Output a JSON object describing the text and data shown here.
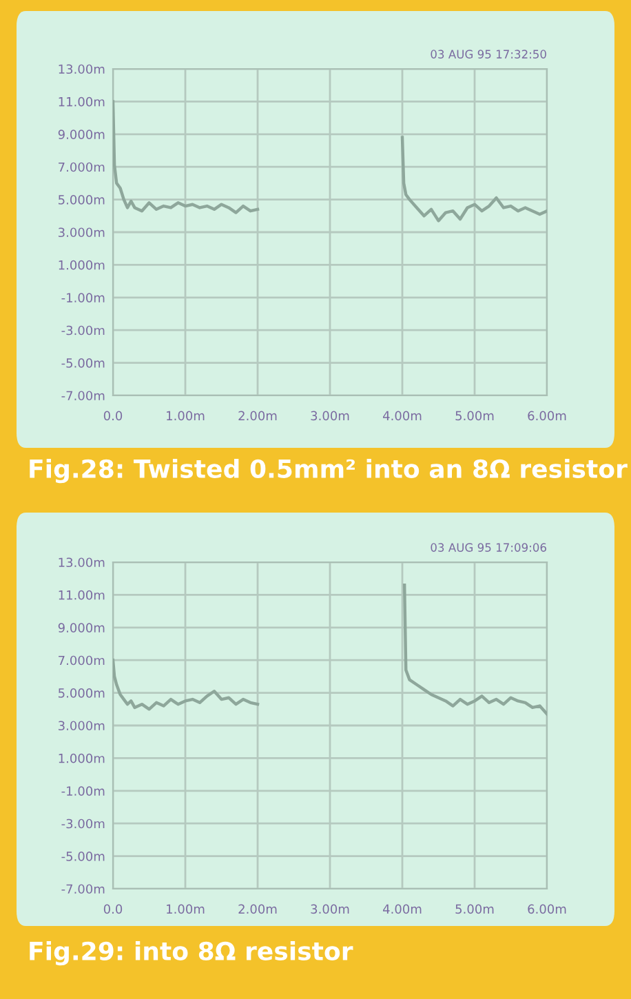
{
  "chart_data": [
    {
      "type": "line",
      "title": "Fig.28: Twisted 0.5mm² into an 8Ω resistor",
      "subtitle": "03 AUG 95 17:32:50",
      "x": [
        0,
        0.02,
        0.05,
        0.1,
        0.15,
        0.2,
        0.25,
        0.3,
        0.4,
        0.5,
        0.6,
        0.7,
        0.8,
        0.9,
        1.0,
        1.1,
        1.2,
        1.3,
        1.4,
        1.5,
        1.6,
        1.7,
        1.8,
        1.9,
        2.0,
        3.0,
        4.0,
        4.02,
        4.05,
        4.1,
        4.2,
        4.3,
        4.4,
        4.5,
        4.6,
        4.7,
        4.8,
        4.9,
        5.0,
        5.1,
        5.2,
        5.3,
        5.4,
        5.5,
        5.6,
        5.7,
        5.8,
        5.9,
        6.0
      ],
      "series": [
        {
          "color": "#8ea79b",
          "values": [
            11.0,
            7.1,
            6.0,
            5.7,
            5.0,
            4.5,
            4.9,
            4.5,
            4.3,
            4.8,
            4.4,
            4.6,
            4.5,
            4.8,
            4.6,
            4.7,
            4.5,
            4.6,
            4.4,
            4.7,
            4.5,
            4.2,
            4.6,
            4.3,
            4.4,
            null,
            8.8,
            6.0,
            5.3,
            5.0,
            4.5,
            4.0,
            4.4,
            3.7,
            4.2,
            4.3,
            3.8,
            4.5,
            4.7,
            4.3,
            4.6,
            5.1,
            4.5,
            4.6,
            4.3,
            4.5,
            4.3,
            4.1,
            4.3
          ]
        }
      ],
      "xlim": [
        0,
        6
      ],
      "xticks": [
        {
          "value": 0,
          "label": "0.0"
        },
        {
          "value": 1,
          "label": "1.00m"
        },
        {
          "value": 2,
          "label": "2.00m"
        },
        {
          "value": 3,
          "label": "3.00m"
        },
        {
          "value": 4,
          "label": "4.00m"
        },
        {
          "value": 5,
          "label": "5.00m"
        },
        {
          "value": 6,
          "label": "6.00m"
        }
      ],
      "ylim": [
        -7,
        13
      ],
      "yticks": [
        {
          "value": 13,
          "label": "13.00m"
        },
        {
          "value": 11,
          "label": "11.00m"
        },
        {
          "value": 9,
          "label": "9.000m"
        },
        {
          "value": 7,
          "label": "7.000m"
        },
        {
          "value": 5,
          "label": "5.000m"
        },
        {
          "value": 3,
          "label": "3.000m"
        },
        {
          "value": 1,
          "label": "1.000m"
        },
        {
          "value": -1,
          "label": "-1.00m"
        },
        {
          "value": -3,
          "label": "-3.00m"
        },
        {
          "value": -5,
          "label": "-5.00m"
        },
        {
          "value": -7,
          "label": "-7.00m"
        }
      ],
      "grid": true
    },
    {
      "type": "line",
      "title": "Fig.29: into 8Ω resistor",
      "subtitle": "03 AUG 95 17:09:06",
      "x": [
        0,
        0.02,
        0.05,
        0.1,
        0.15,
        0.2,
        0.25,
        0.3,
        0.4,
        0.5,
        0.6,
        0.7,
        0.8,
        0.9,
        1.0,
        1.1,
        1.2,
        1.3,
        1.4,
        1.5,
        1.6,
        1.7,
        1.8,
        1.9,
        2.0,
        3.0,
        4.03,
        4.05,
        4.1,
        4.2,
        4.3,
        4.4,
        4.5,
        4.6,
        4.7,
        4.8,
        4.9,
        5.0,
        5.1,
        5.2,
        5.3,
        5.4,
        5.5,
        5.6,
        5.7,
        5.8,
        5.9,
        6.0
      ],
      "series": [
        {
          "color": "#8ea79b",
          "values": [
            7.0,
            6.0,
            5.5,
            4.9,
            4.6,
            4.3,
            4.5,
            4.1,
            4.3,
            4.0,
            4.4,
            4.2,
            4.6,
            4.3,
            4.5,
            4.6,
            4.4,
            4.8,
            5.1,
            4.6,
            4.7,
            4.3,
            4.6,
            4.4,
            4.3,
            null,
            11.6,
            6.4,
            5.8,
            5.5,
            5.2,
            4.9,
            4.7,
            4.5,
            4.2,
            4.6,
            4.3,
            4.5,
            4.8,
            4.4,
            4.6,
            4.3,
            4.7,
            4.5,
            4.4,
            4.1,
            4.2,
            3.7
          ]
        }
      ],
      "xlim": [
        0,
        6
      ],
      "xticks": [
        {
          "value": 0,
          "label": "0.0"
        },
        {
          "value": 1,
          "label": "1.00m"
        },
        {
          "value": 2,
          "label": "2.00m"
        },
        {
          "value": 3,
          "label": "3.00m"
        },
        {
          "value": 4,
          "label": "4.00m"
        },
        {
          "value": 5,
          "label": "5.00m"
        },
        {
          "value": 6,
          "label": "6.00m"
        }
      ],
      "ylim": [
        -7,
        13
      ],
      "yticks": [
        {
          "value": 13,
          "label": "13.00m"
        },
        {
          "value": 11,
          "label": "11.00m"
        },
        {
          "value": 9,
          "label": "9.000m"
        },
        {
          "value": 7,
          "label": "7.000m"
        },
        {
          "value": 5,
          "label": "5.000m"
        },
        {
          "value": 3,
          "label": "3.000m"
        },
        {
          "value": 1,
          "label": "1.000m"
        },
        {
          "value": -1,
          "label": "-1.00m"
        },
        {
          "value": -3,
          "label": "-3.00m"
        },
        {
          "value": -5,
          "label": "-5.00m"
        },
        {
          "value": -7,
          "label": "-7.00m"
        }
      ],
      "grid": true
    }
  ]
}
